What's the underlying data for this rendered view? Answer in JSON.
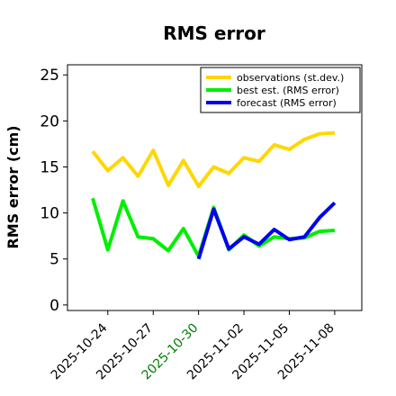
{
  "chart_data": {
    "type": "line",
    "title": "RMS error",
    "ylabel": "RMS error (cm)",
    "x": [
      "2025-10-23",
      "2025-10-24",
      "2025-10-25",
      "2025-10-26",
      "2025-10-27",
      "2025-10-28",
      "2025-10-29",
      "2025-10-30",
      "2025-10-31",
      "2025-11-01",
      "2025-11-02",
      "2025-11-03",
      "2025-11-04",
      "2025-11-05",
      "2025-11-06",
      "2025-11-07",
      "2025-11-08"
    ],
    "series": [
      {
        "name": "observations (st.dev.)",
        "color": "#ffd700",
        "values": [
          16.7,
          14.6,
          16.0,
          14.0,
          16.8,
          13.0,
          15.7,
          12.9,
          15.0,
          14.3,
          16.0,
          15.6,
          17.4,
          16.9,
          18.0,
          18.6,
          18.7
        ]
      },
      {
        "name": "best est. (RMS error)",
        "color": "#00ee00",
        "values": [
          11.6,
          6.0,
          11.3,
          7.4,
          7.2,
          5.9,
          8.3,
          5.3,
          10.6,
          6.0,
          7.6,
          6.4,
          7.4,
          7.2,
          7.3,
          8.0,
          8.1
        ]
      },
      {
        "name": "forecast (RMS error)",
        "color": "#0000ee",
        "values": [
          null,
          null,
          null,
          null,
          null,
          null,
          null,
          5.0,
          10.4,
          6.1,
          7.4,
          6.6,
          8.2,
          7.1,
          7.4,
          9.5,
          11.1
        ]
      }
    ],
    "xlim": [
      "2025-10-21T08:00:00Z",
      "2025-11-09T19:00:00Z"
    ],
    "xticks": [
      "2025-10-24",
      "2025-10-27",
      "2025-10-30",
      "2025-11-02",
      "2025-11-05",
      "2025-11-08"
    ],
    "highlight_xtick": "2025-10-30",
    "highlight_color": "green",
    "ylim": [
      -0.6,
      26.1
    ],
    "yticks": [
      0,
      5,
      10,
      15,
      20,
      25
    ],
    "legend": "upper right"
  }
}
